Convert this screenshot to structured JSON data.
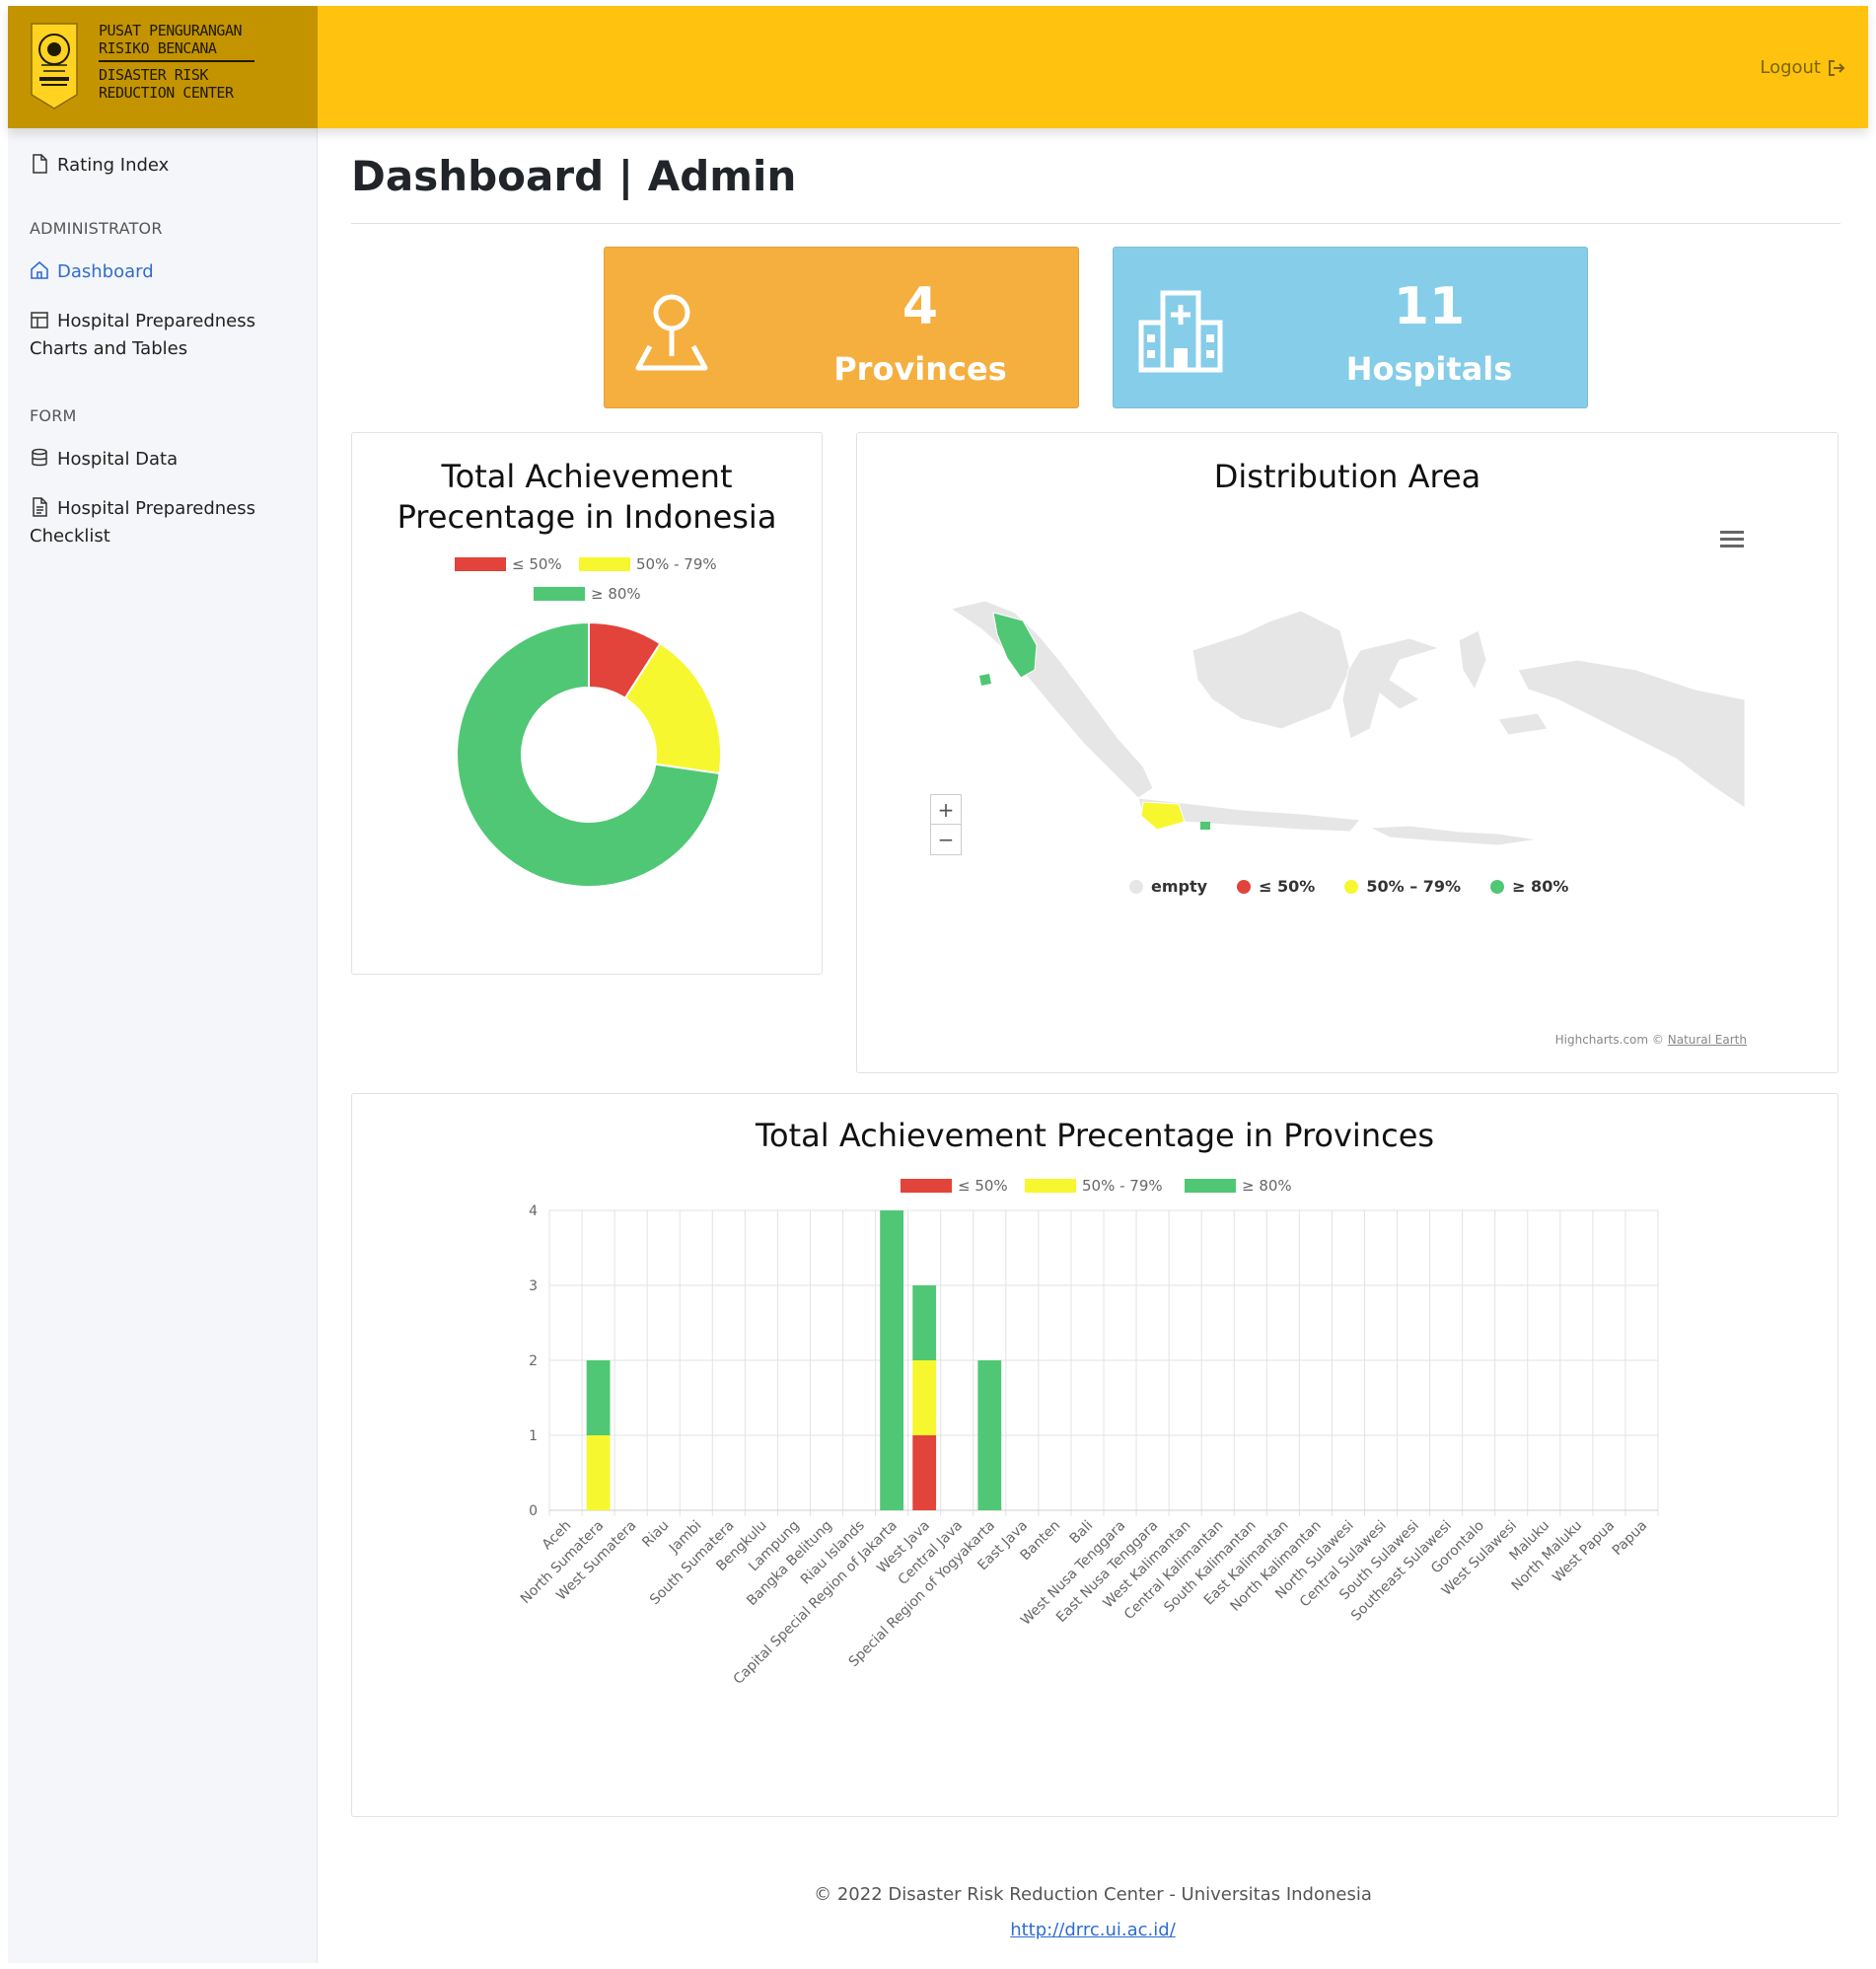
{
  "brand": {
    "logo_name": "universitas-indonesia-logo",
    "line1": "PUSAT PENGURANGAN",
    "line2": "RISIKO BENCANA",
    "line3": "DISASTER RISK",
    "line4": "REDUCTION CENTER"
  },
  "header": {
    "logout_label": "Logout",
    "logout_icon": "logout-icon"
  },
  "sidebar": {
    "rating_index": "Rating Index",
    "section_admin": "ADMINISTRATOR",
    "dashboard": "Dashboard",
    "hp_charts_line1": "Hospital Preparedness",
    "hp_charts_line2": "Charts and Tables",
    "section_form": "FORM",
    "hospital_data": "Hospital Data",
    "hp_checklist_line1": "Hospital Preparedness",
    "hp_checklist_line2": "Checklist"
  },
  "page": {
    "title": "Dashboard | Admin"
  },
  "stats": {
    "provinces": {
      "value": "4",
      "label": "Provinces",
      "icon": "map-pin-icon",
      "color": "#F5AF3E"
    },
    "hospitals": {
      "value": "11",
      "label": "Hospitals",
      "icon": "hospital-icon",
      "color": "#86CDE9"
    }
  },
  "colors": {
    "red": "#E2433A",
    "yellow": "#F7F72F",
    "green": "#50C774",
    "empty": "#E6E6E6",
    "accent": "#FFC20E"
  },
  "chart_data": [
    {
      "type": "pie",
      "title_line1": "Total Achievement",
      "title_line2": "Precentage in Indonesia",
      "legend": [
        "≤ 50%",
        "50% - 79%",
        "≥ 80%"
      ],
      "categories": [
        "≤ 50%",
        "50% - 79%",
        "≥ 80%"
      ],
      "values": [
        1,
        2,
        8
      ]
    },
    {
      "type": "map",
      "title": "Distribution Area",
      "legend": [
        "empty",
        "≤ 50%",
        "50% – 79%",
        "≥ 80%"
      ],
      "zoom_in": "+",
      "zoom_out": "−",
      "credits": "Highcharts.com ©",
      "credits_link": "Natural Earth"
    },
    {
      "type": "bar",
      "stacked": true,
      "title": "Total Achievement Precentage in Provinces",
      "legend": [
        "≤ 50%",
        "50% - 79%",
        "≥ 80%"
      ],
      "ylim": [
        0,
        4
      ],
      "yticks": [
        0,
        1,
        2,
        3,
        4
      ],
      "categories": [
        "Aceh",
        "North Sumatera",
        "West Sumatera",
        "Riau",
        "Jambi",
        "South Sumatera",
        "Bengkulu",
        "Lampung",
        "Bangka Belitung",
        "Riau Islands",
        "Capital Special Region of Jakarta",
        "West Java",
        "Central Java",
        "Special Region of Yogyakarta",
        "East Java",
        "Banten",
        "Bali",
        "West Nusa Tenggara",
        "East Nusa Tenggara",
        "West Kalimantan",
        "Central Kalimantan",
        "South Kalimantan",
        "East Kalimantan",
        "North Kalimantan",
        "North Sulawesi",
        "Central Sulawesi",
        "South Sulawesi",
        "Southeast Sulawesi",
        "Gorontalo",
        "West Sulawesi",
        "Maluku",
        "North Maluku",
        "West Papua",
        "Papua"
      ],
      "series": [
        {
          "name": "≤ 50%",
          "values": [
            0,
            0,
            0,
            0,
            0,
            0,
            0,
            0,
            0,
            0,
            0,
            1,
            0,
            0,
            0,
            0,
            0,
            0,
            0,
            0,
            0,
            0,
            0,
            0,
            0,
            0,
            0,
            0,
            0,
            0,
            0,
            0,
            0,
            0
          ]
        },
        {
          "name": "50% - 79%",
          "values": [
            0,
            1,
            0,
            0,
            0,
            0,
            0,
            0,
            0,
            0,
            0,
            1,
            0,
            0,
            0,
            0,
            0,
            0,
            0,
            0,
            0,
            0,
            0,
            0,
            0,
            0,
            0,
            0,
            0,
            0,
            0,
            0,
            0,
            0
          ]
        },
        {
          "name": "≥ 80%",
          "values": [
            0,
            1,
            0,
            0,
            0,
            0,
            0,
            0,
            0,
            0,
            4,
            1,
            0,
            2,
            0,
            0,
            0,
            0,
            0,
            0,
            0,
            0,
            0,
            0,
            0,
            0,
            0,
            0,
            0,
            0,
            0,
            0,
            0,
            0
          ]
        }
      ]
    }
  ],
  "footer": {
    "copyright": "© 2022 Disaster Risk Reduction Center - Universitas Indonesia",
    "link": "http://drrc.ui.ac.id/"
  }
}
